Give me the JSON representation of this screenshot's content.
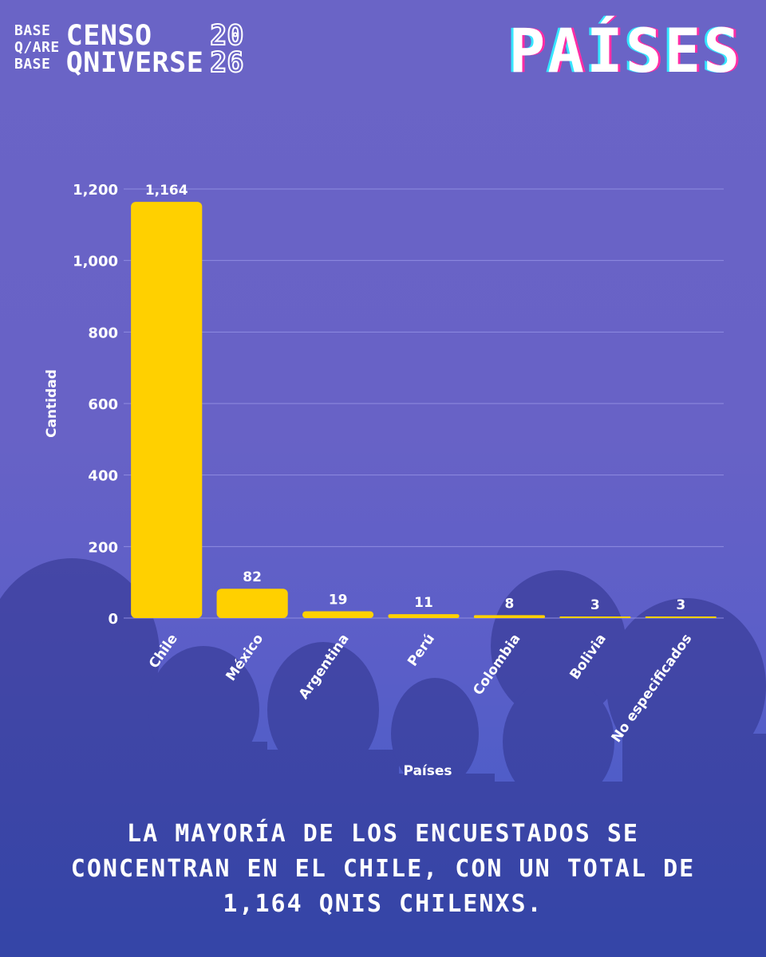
{
  "header": {
    "brand_small": [
      "BASE",
      "Q/ARE",
      "BASE"
    ],
    "brand_big": [
      "CENSO",
      "QNIVERSE"
    ],
    "brand_year": [
      "20",
      "26"
    ],
    "title": "PAÍSES"
  },
  "caption": "LA MAYORÍA DE LOS ENCUESTADOS SE CONCENTRAN EN EL CHILE, CON UN TOTAL DE 1,164 QNIS CHILENXS.",
  "colors": {
    "bar": "#ffd000",
    "grid": "#8f8ce0",
    "background": "#6a64c6"
  },
  "chart_data": {
    "type": "bar",
    "categories": [
      "Chile",
      "México",
      "Argentina",
      "Perú",
      "Colombia",
      "Bolivia",
      "No especificados"
    ],
    "values": [
      1164,
      82,
      19,
      11,
      8,
      3,
      3
    ],
    "value_labels": [
      "1,164",
      "82",
      "19",
      "11",
      "8",
      "3",
      "3"
    ],
    "title": "",
    "xlabel": "Países",
    "ylabel": "Cantidad",
    "ylim": [
      0,
      1200
    ],
    "yticks": [
      0,
      200,
      400,
      600,
      800,
      1000,
      1200
    ],
    "ytick_labels": [
      "0",
      "200",
      "400",
      "600",
      "800",
      "1,000",
      "1,200"
    ],
    "grid": true,
    "legend": "none"
  }
}
